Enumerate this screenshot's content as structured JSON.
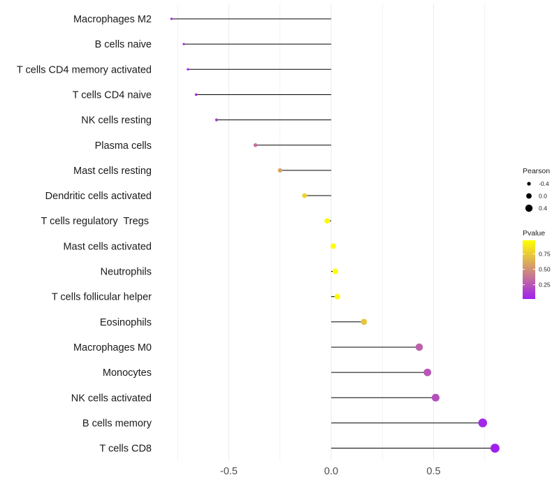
{
  "chart_data": {
    "type": "lollipop",
    "title": "",
    "xlabel": "",
    "ylabel": "",
    "xlim": [
      -0.78,
      0.82
    ],
    "x_ticks": [
      {
        "value": -0.5,
        "label": "-0.5"
      },
      {
        "value": 0.0,
        "label": "0.0"
      },
      {
        "value": 0.5,
        "label": "0.5"
      }
    ],
    "grid": true,
    "points": [
      {
        "label": "Macrophages M2",
        "pearson": -0.78,
        "pvalue": 0.02
      },
      {
        "label": "B cells naive",
        "pearson": -0.72,
        "pvalue": 0.03
      },
      {
        "label": "T cells CD4 memory activated",
        "pearson": -0.7,
        "pvalue": 0.04
      },
      {
        "label": "T cells CD4 naive",
        "pearson": -0.66,
        "pvalue": 0.05
      },
      {
        "label": "NK cells resting",
        "pearson": -0.56,
        "pvalue": 0.12
      },
      {
        "label": "Plasma cells",
        "pearson": -0.37,
        "pvalue": 0.35
      },
      {
        "label": "Mast cells resting",
        "pearson": -0.25,
        "pvalue": 0.58
      },
      {
        "label": "Dendritic cells activated",
        "pearson": -0.13,
        "pvalue": 0.78
      },
      {
        "label": "T cells regulatory  Tregs ",
        "pearson": -0.02,
        "pvalue": 0.95
      },
      {
        "label": "Mast cells activated",
        "pearson": 0.01,
        "pvalue": 0.96
      },
      {
        "label": "Neutrophils",
        "pearson": 0.02,
        "pvalue": 0.97
      },
      {
        "label": "T cells follicular helper",
        "pearson": 0.03,
        "pvalue": 0.95
      },
      {
        "label": "Eosinophils",
        "pearson": 0.16,
        "pvalue": 0.72
      },
      {
        "label": "Macrophages M0",
        "pearson": 0.43,
        "pvalue": 0.3
      },
      {
        "label": "Monocytes",
        "pearson": 0.47,
        "pvalue": 0.25
      },
      {
        "label": "NK cells activated",
        "pearson": 0.51,
        "pvalue": 0.22
      },
      {
        "label": "B cells memory",
        "pearson": 0.74,
        "pvalue": 0.05
      },
      {
        "label": "T cells CD8",
        "pearson": 0.8,
        "pvalue": 0.02
      }
    ],
    "legend": {
      "size_title": "Pearson",
      "size_entries": [
        {
          "value": -0.4,
          "label": "-0.4"
        },
        {
          "value": 0.0,
          "label": "0.0"
        },
        {
          "value": 0.4,
          "label": "0.4"
        }
      ],
      "color_title": "Pvalue",
      "color_ticks": [
        {
          "value": 0.75,
          "label": "0.75"
        },
        {
          "value": 0.5,
          "label": "0.50"
        },
        {
          "value": 0.25,
          "label": "0.25"
        }
      ],
      "color_range": [
        0.02,
        0.97
      ],
      "color_low": "#a020f0",
      "color_high": "#ffff00",
      "placement": "right"
    }
  }
}
